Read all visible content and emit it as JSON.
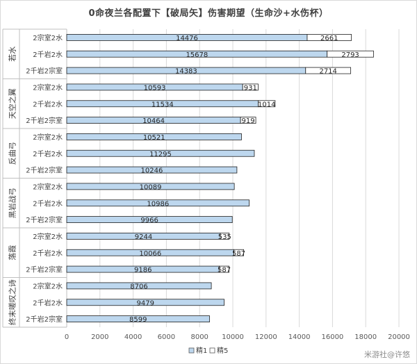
{
  "chart_data": {
    "type": "bar",
    "orientation": "horizontal",
    "stacked": true,
    "title": "0命夜兰各配置下【破局矢】伤害期望（生命沙+水伤杯）",
    "xlim": [
      0,
      20000
    ],
    "xticks": [
      "0",
      "2000",
      "4000",
      "6000",
      "8000",
      "10000",
      "12000",
      "14000",
      "16000",
      "18000",
      "20000"
    ],
    "grid": "vertical",
    "legend_position": "bottom",
    "groups": [
      {
        "name": "若水",
        "categories": [
          "2宗室2水",
          "2千岩2水",
          "2千岩2宗室"
        ]
      },
      {
        "name": "天空之翼",
        "categories": [
          "2宗室2水",
          "2千岩2水",
          "2千岩2宗室"
        ]
      },
      {
        "name": "反曲弓",
        "categories": [
          "2宗室2水",
          "2千岩2水",
          "2千岩2宗室"
        ]
      },
      {
        "name": "黑岩战弓",
        "categories": [
          "2宗室2水",
          "2千岩2水",
          "2千岩2宗室"
        ]
      },
      {
        "name": "落霞",
        "categories": [
          "2宗室2水",
          "2千岩2水",
          "2千岩2宗室"
        ]
      },
      {
        "name": "终末嗟叹之诗",
        "categories": [
          "2宗室2水",
          "2千岩2水",
          "2千岩2宗室"
        ]
      }
    ],
    "series": [
      {
        "name": "精1",
        "color": "#bdd7ee",
        "values": [
          14476,
          15678,
          14383,
          10593,
          11534,
          10464,
          10521,
          11295,
          10246,
          10089,
          10986,
          9966,
          9244,
          10066,
          9186,
          8706,
          9479,
          8599
        ]
      },
      {
        "name": "精5",
        "color": "#ffffff",
        "values": [
          2661,
          2793,
          2714,
          931,
          1014,
          919,
          0,
          0,
          0,
          0,
          0,
          0,
          535,
          587,
          587,
          0,
          0,
          0
        ]
      }
    ]
  },
  "watermark": "米游社@许悠"
}
